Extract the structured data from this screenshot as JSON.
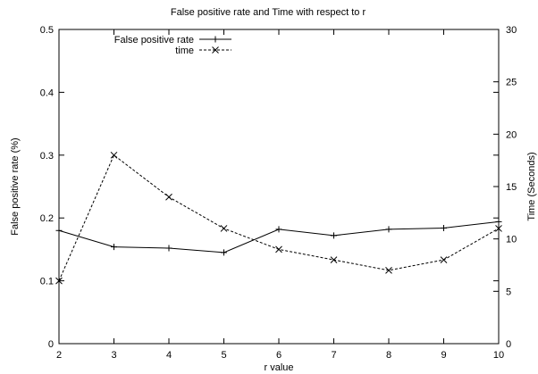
{
  "chart_data": {
    "type": "line",
    "title": "False positive rate and Time with respect to r",
    "xlabel": "r value",
    "ylabel": "False positive rate (%)",
    "y2label": "Time (Seconds)",
    "x": [
      2,
      3,
      4,
      5,
      6,
      7,
      8,
      9,
      10
    ],
    "xlim": [
      2,
      10
    ],
    "ylim": [
      0,
      0.5
    ],
    "y2lim": [
      0,
      30
    ],
    "x_ticks": [
      "2",
      "3",
      "4",
      "5",
      "6",
      "7",
      "8",
      "9",
      "10"
    ],
    "y_ticks": [
      "0",
      "0.1",
      "0.2",
      "0.3",
      "0.4",
      "0.5"
    ],
    "y2_ticks": [
      "0",
      "5",
      "10",
      "15",
      "20",
      "25",
      "30"
    ],
    "grid": false,
    "legend_position": "top-left",
    "series": [
      {
        "name": "False positive rate",
        "axis": "left",
        "style": "solid",
        "marker": "plus",
        "values": [
          0.18,
          0.154,
          0.152,
          0.145,
          0.182,
          0.172,
          0.182,
          0.184,
          0.194
        ]
      },
      {
        "name": "time",
        "axis": "right",
        "style": "dashed",
        "marker": "cross",
        "values": [
          6,
          18,
          14,
          11,
          9,
          8,
          7,
          8,
          11
        ]
      }
    ]
  }
}
